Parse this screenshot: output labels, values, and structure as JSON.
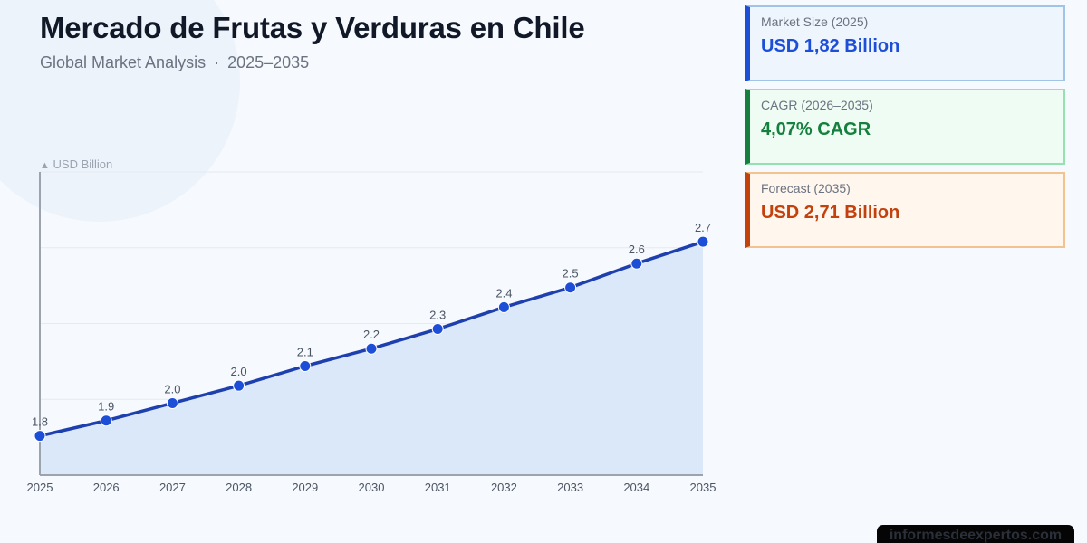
{
  "header": {
    "title": "Mercado de Frutas y Verduras en Chile",
    "subtitle_left": "Global Market Analysis",
    "subtitle_sep": "·",
    "subtitle_right": "2025–2035"
  },
  "axis": {
    "unit_icon": "▲",
    "unit_label": "USD Billion"
  },
  "cards": [
    {
      "label": "Market Size (2025)",
      "value": "USD 1,82 Billion",
      "color": "#1d4ed8"
    },
    {
      "label": "CAGR (2026–2035)",
      "value": "4,07% CAGR",
      "color": "#15803d"
    },
    {
      "label": "Forecast (2035)",
      "value": "USD 2,71 Billion",
      "color": "#c2410c"
    }
  ],
  "watermark": "informesdeexpertos.com",
  "chart_data": {
    "type": "area",
    "title": "Mercado de Frutas y Verduras en Chile",
    "subtitle": "Global Market Analysis · 2025–2035",
    "xlabel": "",
    "ylabel": "USD Billion",
    "categories": [
      "2025",
      "2026",
      "2027",
      "2028",
      "2029",
      "2030",
      "2031",
      "2032",
      "2033",
      "2034",
      "2035"
    ],
    "series": [
      {
        "name": "Market Size (USD Billion)",
        "values": [
          1.82,
          1.89,
          1.97,
          2.05,
          2.14,
          2.22,
          2.31,
          2.41,
          2.5,
          2.61,
          2.71
        ],
        "labels": [
          "1.8",
          "1.9",
          "2.0",
          "2.0",
          "2.1",
          "2.2",
          "2.3",
          "2.4",
          "2.5",
          "2.6",
          "2.7"
        ],
        "line_color": "#1e40af",
        "marker_color": "#1d4ed8",
        "fill_color": "#dbe8fa"
      }
    ],
    "ylim": [
      1.64,
      3.03
    ],
    "grid": true,
    "legend": "none"
  }
}
